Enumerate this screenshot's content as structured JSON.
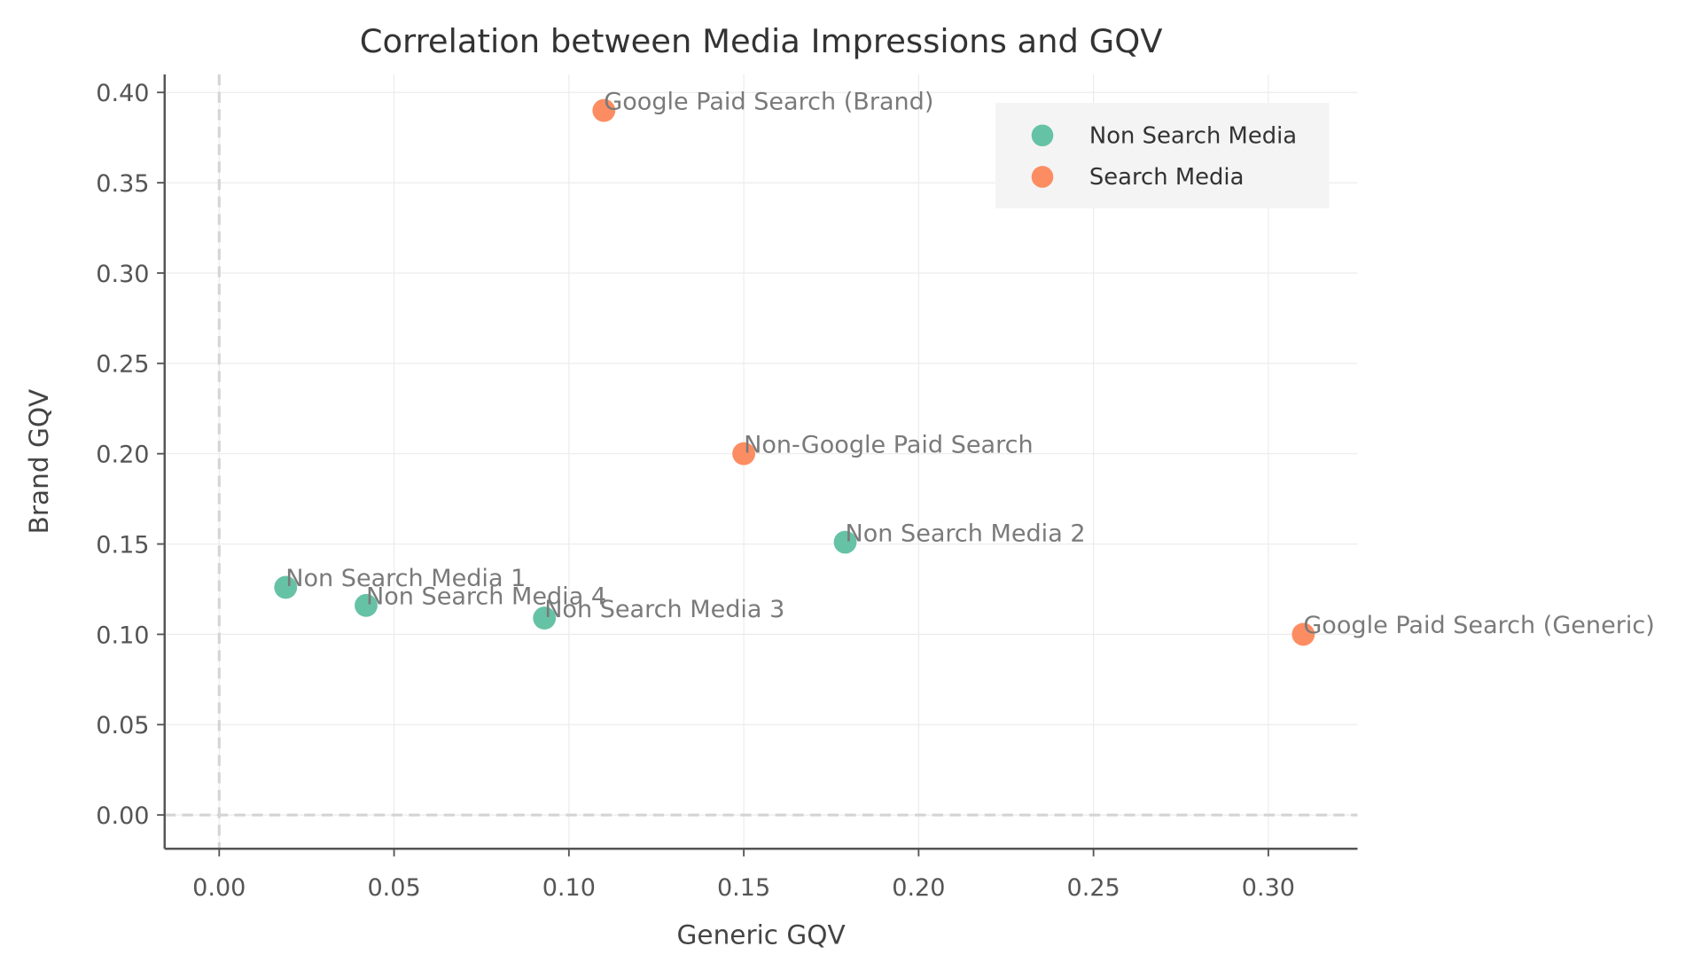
{
  "chart_data": {
    "type": "scatter",
    "title": "Correlation between Media Impressions and GQV",
    "xlabel": "Generic GQV",
    "ylabel": "Brand GQV",
    "xlim": [
      -0.0156,
      0.3255
    ],
    "ylim": [
      -0.0187,
      0.41
    ],
    "xticks": [
      "0.00",
      "0.05",
      "0.10",
      "0.15",
      "0.20",
      "0.25",
      "0.30"
    ],
    "yticks": [
      "0.00",
      "0.05",
      "0.10",
      "0.15",
      "0.20",
      "0.25",
      "0.30",
      "0.35",
      "0.40"
    ],
    "grid": true,
    "reference_lines": {
      "x": 0,
      "y": 0,
      "style": "dashed"
    },
    "legend_position": "top-right",
    "series": [
      {
        "name": "Non Search Media",
        "color": "#66c2a5",
        "points": [
          {
            "label": "Non Search Media 1",
            "x": 0.019,
            "y": 0.126
          },
          {
            "label": "Non Search Media 4",
            "x": 0.042,
            "y": 0.116
          },
          {
            "label": "Non Search Media 3",
            "x": 0.093,
            "y": 0.109
          },
          {
            "label": "Non Search Media 2",
            "x": 0.179,
            "y": 0.151
          }
        ]
      },
      {
        "name": "Search Media",
        "color": "#fc8d62",
        "points": [
          {
            "label": "Google Paid Search (Brand)",
            "x": 0.11,
            "y": 0.39
          },
          {
            "label": "Non-Google Paid Search",
            "x": 0.15,
            "y": 0.2
          },
          {
            "label": "Google Paid Search (Generic)",
            "x": 0.31,
            "y": 0.1
          }
        ]
      }
    ]
  }
}
